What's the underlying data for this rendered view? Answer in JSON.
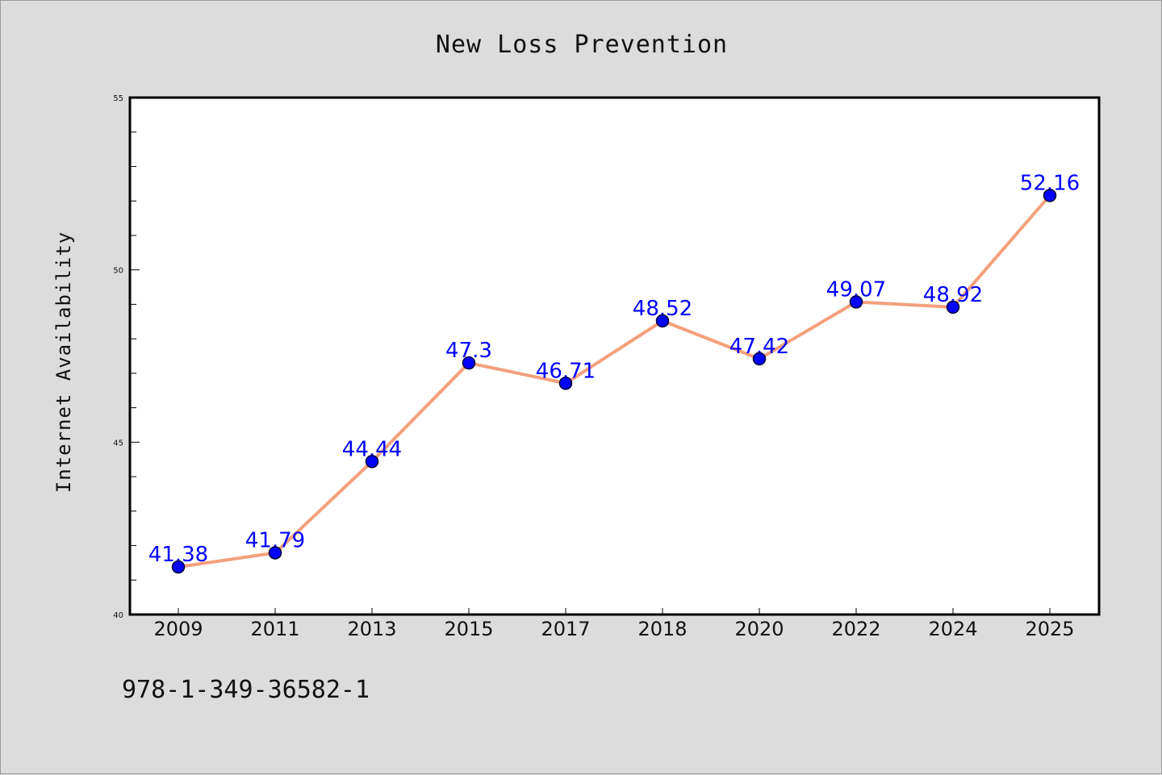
{
  "chart_data": {
    "type": "line",
    "title": "New Loss Prevention",
    "xlabel": "",
    "ylabel": "Internet Availability",
    "categories": [
      "2009",
      "2011",
      "2013",
      "2015",
      "2017",
      "2018",
      "2020",
      "2022",
      "2024",
      "2025"
    ],
    "series": [
      {
        "values": [
          41.38,
          41.79,
          44.44,
          47.3,
          46.71,
          48.52,
          47.42,
          49.07,
          48.92,
          52.16
        ],
        "labels": [
          "41.38",
          "41.79",
          "44.44",
          "47.3",
          "46.71",
          "48.52",
          "47.42",
          "49.07",
          "48.92",
          "52.16"
        ]
      }
    ],
    "ylim": [
      40,
      55
    ],
    "yticks": [
      40,
      45,
      50,
      55
    ],
    "grid": false,
    "line_color": "#f4a07c",
    "marker_color": "#0000ff",
    "label_color": "#0000ff"
  },
  "footer": {
    "text": "978-1-349-36582-1"
  }
}
